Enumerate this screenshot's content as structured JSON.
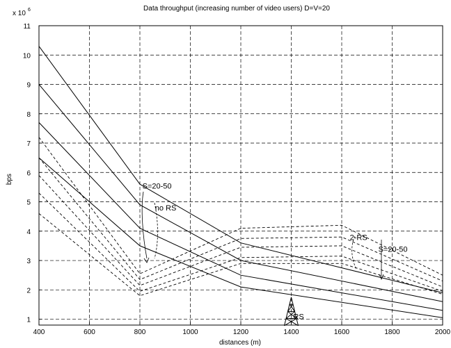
{
  "chart_data": {
    "type": "line",
    "title": "Data throughput (increasing number of video users) D=V=20",
    "xlabel": "distances (m)",
    "ylabel": "bps",
    "y_multiplier_label": "x 10",
    "y_multiplier_exp": "6",
    "xlim": [
      400,
      2000
    ],
    "ylim": [
      0.8,
      11
    ],
    "xticks": [
      400,
      600,
      800,
      1000,
      1200,
      1400,
      1600,
      1800,
      2000
    ],
    "yticks": [
      1,
      2,
      3,
      4,
      5,
      6,
      7,
      8,
      9,
      10,
      11
    ],
    "grid": true,
    "series": [
      {
        "style": "solid",
        "x": [
          400,
          800,
          1200,
          2000
        ],
        "y": [
          10.3,
          5.6,
          3.6,
          1.9
        ]
      },
      {
        "style": "solid",
        "x": [
          400,
          800,
          1200,
          2000
        ],
        "y": [
          9.0,
          4.9,
          3.0,
          1.6
        ]
      },
      {
        "style": "solid",
        "x": [
          400,
          800,
          1200,
          2000
        ],
        "y": [
          7.7,
          4.1,
          2.5,
          1.3
        ]
      },
      {
        "style": "solid",
        "x": [
          400,
          800,
          1200,
          2000
        ],
        "y": [
          6.5,
          3.5,
          2.1,
          1.05
        ]
      },
      {
        "style": "dashed",
        "x": [
          400,
          800,
          1200,
          1600,
          2000
        ],
        "y": [
          7.2,
          2.55,
          4.1,
          4.2,
          2.5
        ]
      },
      {
        "style": "dashed",
        "x": [
          400,
          800,
          1200,
          1600,
          2000
        ],
        "y": [
          6.5,
          2.35,
          3.75,
          3.8,
          2.3
        ]
      },
      {
        "style": "dashed",
        "x": [
          400,
          800,
          1200,
          1600,
          2000
        ],
        "y": [
          5.9,
          2.15,
          3.45,
          3.5,
          2.1
        ]
      },
      {
        "style": "dashed",
        "x": [
          400,
          800,
          1200,
          1600,
          2000
        ],
        "y": [
          5.3,
          1.95,
          3.1,
          3.15,
          1.95
        ]
      },
      {
        "style": "dashed",
        "x": [
          400,
          800,
          1200,
          1600,
          2000
        ],
        "y": [
          4.6,
          1.8,
          2.9,
          2.9,
          1.85
        ]
      }
    ],
    "annotations": [
      {
        "text": "S=20-50",
        "x": 810,
        "y": 5.45
      },
      {
        "text": "no RS",
        "x": 860,
        "y": 4.7
      },
      {
        "text": "2-RS",
        "x": 1632,
        "y": 3.7
      },
      {
        "text": "S=20-50",
        "x": 1745,
        "y": 3.3
      },
      {
        "text": "RS",
        "x": 1408,
        "y": 1.0
      }
    ]
  }
}
